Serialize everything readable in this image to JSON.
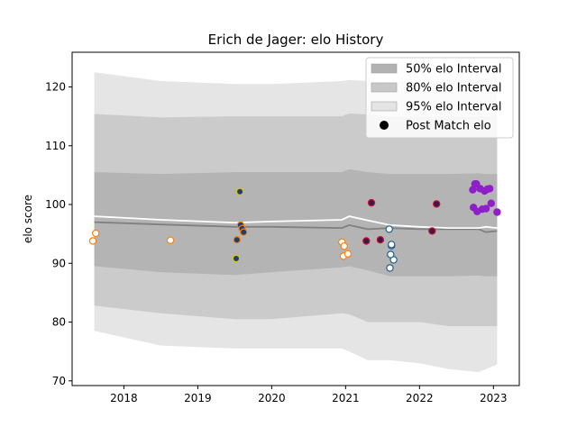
{
  "chart_data": {
    "type": "scatter",
    "title": "Erich de Jager: elo History",
    "xlabel": "",
    "ylabel": "elo score",
    "xlim": [
      2017.3,
      2023.35
    ],
    "ylim": [
      69.2,
      125.9
    ],
    "x_ticks": [
      2018,
      2019,
      2020,
      2021,
      2022,
      2023
    ],
    "x_tick_labels": [
      "2018",
      "2019",
      "2020",
      "2021",
      "2022",
      "2023"
    ],
    "y_ticks": [
      70,
      80,
      90,
      100,
      110,
      120
    ],
    "y_tick_labels": [
      "70",
      "80",
      "90",
      "100",
      "110",
      "120"
    ],
    "grid": false,
    "legend_placement": "top-right",
    "legend": [
      {
        "label": "50% elo Interval",
        "kind": "band",
        "color": "#b2b2b2"
      },
      {
        "label": "80% elo Interval",
        "kind": "band",
        "color": "#c8c8c8"
      },
      {
        "label": "95% elo Interval",
        "kind": "band",
        "color": "#e4e4e4"
      },
      {
        "label": "Post Match elo",
        "kind": "marker",
        "color": "#000000"
      }
    ],
    "colors": {
      "band50": "#b4b4b4",
      "band80": "#cbcbcb",
      "band95": "#e5e5e5",
      "mean_line": "#808080",
      "white_line": "#ffffff",
      "orange": "#ff7f0e",
      "navy": "#1f3f6e",
      "steel": "#1f5f8f",
      "purple": "#8f1fc8",
      "gold": "#d8c800"
    },
    "bands": {
      "x": [
        2017.6,
        2018.5,
        2019.5,
        2020.0,
        2020.95,
        2021.05,
        2021.3,
        2021.6,
        2022.0,
        2022.4,
        2022.8,
        2022.9,
        2023.05
      ],
      "p95_upper": [
        122.5,
        121.0,
        120.5,
        120.5,
        121.0,
        121.2,
        121.0,
        120.8,
        121.0,
        121.2,
        121.5,
        121.5,
        121.8
      ],
      "p80_upper": [
        115.4,
        114.8,
        115.0,
        115.0,
        115.0,
        115.5,
        115.3,
        115.0,
        115.0,
        115.0,
        115.0,
        115.0,
        115.2
      ],
      "p50_upper": [
        105.5,
        105.2,
        105.5,
        105.5,
        105.5,
        106.0,
        105.5,
        105.2,
        105.2,
        105.2,
        105.3,
        105.2,
        105.2
      ],
      "p50_lower": [
        89.5,
        88.5,
        88.0,
        88.5,
        89.3,
        89.5,
        88.8,
        87.8,
        87.8,
        87.8,
        87.9,
        87.8,
        87.8
      ],
      "p80_lower": [
        82.8,
        81.5,
        80.5,
        80.5,
        81.5,
        81.3,
        80.0,
        80.0,
        80.0,
        79.3,
        79.3,
        79.3,
        79.3
      ],
      "p95_lower": [
        78.5,
        76.0,
        75.5,
        75.5,
        75.5,
        75.0,
        73.5,
        73.5,
        73.0,
        72.0,
        71.5,
        72.0,
        72.8
      ]
    },
    "mean_line": {
      "x": [
        2017.6,
        2018.5,
        2019.5,
        2020.0,
        2020.95,
        2021.05,
        2021.3,
        2021.6,
        2022.0,
        2022.4,
        2022.8,
        2022.9,
        2023.05
      ],
      "y": [
        97.0,
        96.6,
        96.2,
        96.2,
        96.0,
        96.5,
        95.8,
        96.0,
        95.8,
        95.8,
        95.8,
        95.3,
        95.5
      ]
    },
    "white_line": {
      "x": [
        2017.6,
        2018.5,
        2019.5,
        2020.0,
        2020.95,
        2021.05,
        2021.3,
        2021.6,
        2022.0,
        2022.4,
        2022.8,
        2022.9,
        2023.05
      ],
      "y": [
        98.0,
        97.4,
        96.9,
        97.1,
        97.4,
        98.0,
        97.3,
        96.5,
        96.2,
        96.0,
        96.0,
        96.2,
        96.0
      ]
    },
    "series": [
      {
        "style": "orange_open",
        "x": [
          2017.58,
          2017.62,
          2018.63,
          2020.95,
          2020.98,
          2020.97,
          2021.03
        ],
        "y": [
          93.8,
          95.1,
          93.9,
          93.6,
          92.9,
          91.2,
          91.6
        ]
      },
      {
        "style": "navy_fill_orange_edge",
        "x": [
          2019.53,
          2019.58,
          2019.6,
          2019.62
        ],
        "y": [
          94.0,
          96.5,
          95.9,
          95.3
        ]
      },
      {
        "style": "navy_fill_gold_edge",
        "x": [
          2019.52,
          2019.57
        ],
        "y": [
          90.8,
          102.2
        ]
      },
      {
        "style": "navy_fill_red_edge",
        "x": [
          2021.28,
          2021.35,
          2021.47,
          2022.17,
          2022.23
        ],
        "y": [
          93.8,
          100.3,
          94.0,
          95.5,
          100.1
        ]
      },
      {
        "style": "steel_open",
        "x": [
          2021.59,
          2021.62,
          2021.62,
          2021.65,
          2021.61,
          2021.6
        ],
        "y": [
          95.8,
          93.0,
          93.2,
          90.6,
          91.5,
          89.2
        ]
      },
      {
        "style": "purple_fill",
        "x": [
          2022.72,
          2022.75,
          2022.73,
          2022.78,
          2022.82,
          2022.85,
          2022.88,
          2022.9,
          2022.92,
          2022.95,
          2022.97,
          2023.05,
          2022.77
        ],
        "y": [
          102.5,
          103.5,
          99.5,
          98.8,
          102.7,
          99.2,
          102.3,
          99.3,
          102.6,
          102.7,
          100.2,
          98.7,
          103.5
        ]
      }
    ]
  }
}
